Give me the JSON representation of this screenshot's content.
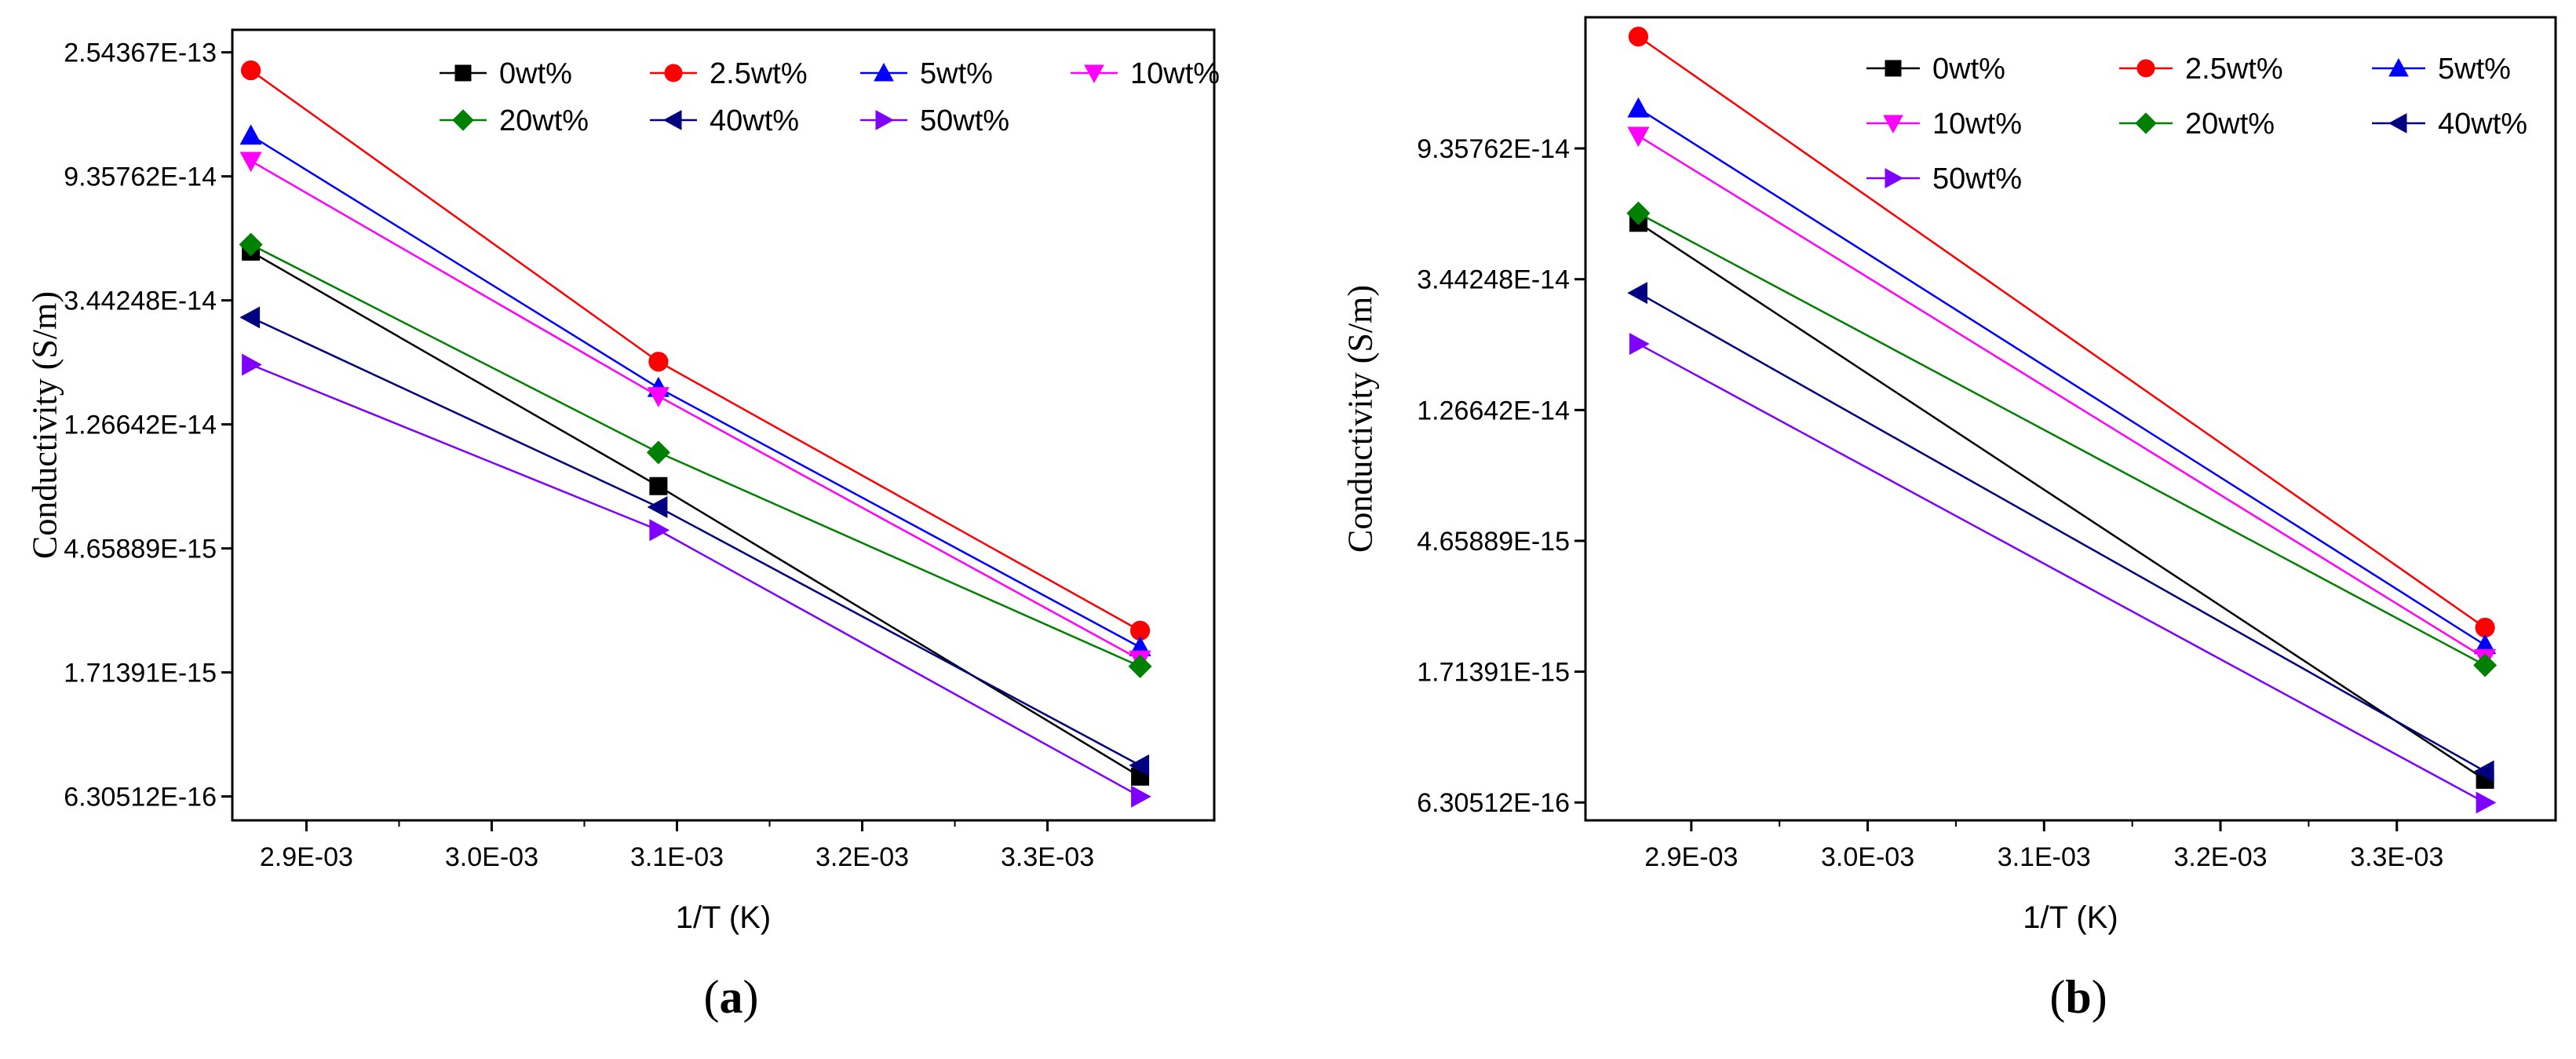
{
  "chart_data": [
    {
      "type": "line",
      "panel_label": "a",
      "xlabel": "1/T (K)",
      "ylabel": "Conductivity (S/m)",
      "yscale": "log",
      "xlim": [
        0.00286,
        0.00339
      ],
      "ylim": [
        5.2e-16,
        3.05e-13
      ],
      "x_ticks": [
        0.0029,
        0.003,
        0.0031,
        0.0032,
        0.0033
      ],
      "x_tick_labels": [
        "2.9E-03",
        "3.0E-03",
        "3.1E-03",
        "3.2E-03",
        "3.3E-03"
      ],
      "y_ticks": [
        6.30512e-16,
        1.71391e-15,
        4.65889e-15,
        1.26642e-14,
        3.44248e-14,
        9.35762e-14,
        2.54367e-13
      ],
      "y_tick_labels": [
        "6.30512E-16",
        "1.71391E-15",
        "4.65889E-15",
        "1.26642E-14",
        "3.44248E-14",
        "9.35762E-14",
        "2.54367E-13"
      ],
      "x": [
        0.00287,
        0.00309,
        0.00335
      ],
      "legend": {
        "columns": 4,
        "placement": "top-right"
      },
      "series": [
        {
          "name": "0wt%",
          "color": "#000000",
          "marker": "square",
          "values": [
            5.1e-14,
            7.7e-15,
            7.4e-16
          ]
        },
        {
          "name": "2.5wt%",
          "color": "#ff0000",
          "marker": "circle",
          "values": [
            2.2e-13,
            2.1e-14,
            2.4e-15
          ]
        },
        {
          "name": "5wt%",
          "color": "#0000ff",
          "marker": "triangle-up",
          "values": [
            1.3e-13,
            1.7e-14,
            2.1e-15
          ]
        },
        {
          "name": "10wt%",
          "color": "#ff00ff",
          "marker": "triangle-down",
          "values": [
            1.06e-13,
            1.59e-14,
            1.9e-15
          ]
        },
        {
          "name": "20wt%",
          "color": "#008000",
          "marker": "diamond",
          "values": [
            5.4e-14,
            1.01e-14,
            1.8e-15
          ]
        },
        {
          "name": "40wt%",
          "color": "#000080",
          "marker": "triangle-left",
          "values": [
            3e-14,
            6.5e-15,
            8.1e-16
          ]
        },
        {
          "name": "50wt%",
          "color": "#8000ff",
          "marker": "triangle-right",
          "values": [
            2.05e-14,
            5.4e-15,
            6.3e-16
          ]
        }
      ]
    },
    {
      "type": "line",
      "panel_label": "b",
      "xlabel": "1/T (K)",
      "ylabel": "Conductivity (S/m)",
      "yscale": "log",
      "xlim": [
        0.00284,
        0.00339
      ],
      "ylim": [
        5.5e-16,
        2.55e-13
      ],
      "x_ticks": [
        0.0029,
        0.003,
        0.0031,
        0.0032,
        0.0033
      ],
      "x_tick_labels": [
        "2.9E-03",
        "3.0E-03",
        "3.1E-03",
        "3.2E-03",
        "3.3E-03"
      ],
      "y_ticks": [
        6.30512e-16,
        1.71391e-15,
        4.65889e-15,
        1.26642e-14,
        3.44248e-14,
        9.35762e-14
      ],
      "y_tick_labels": [
        "6.30512E-16",
        "1.71391E-15",
        "4.65889E-15",
        "1.26642E-14",
        "3.44248E-14",
        "9.35762E-14"
      ],
      "x": [
        0.00287,
        0.00335
      ],
      "legend": {
        "columns": 3,
        "placement": "top-right"
      },
      "series": [
        {
          "name": "0wt%",
          "color": "#000000",
          "marker": "square",
          "values": [
            5.3e-14,
            7.5e-16
          ]
        },
        {
          "name": "2.5wt%",
          "color": "#ff0000",
          "marker": "circle",
          "values": [
            2.2e-13,
            2.4e-15
          ]
        },
        {
          "name": "5wt%",
          "color": "#0000ff",
          "marker": "triangle-up",
          "values": [
            1.27e-13,
            2.1e-15
          ]
        },
        {
          "name": "10wt%",
          "color": "#ff00ff",
          "marker": "triangle-down",
          "values": [
            1.03e-13,
            1.9e-15
          ]
        },
        {
          "name": "20wt%",
          "color": "#008000",
          "marker": "diamond",
          "values": [
            5.7e-14,
            1.8e-15
          ]
        },
        {
          "name": "40wt%",
          "color": "#000080",
          "marker": "triangle-left",
          "values": [
            3.1e-14,
            8e-16
          ]
        },
        {
          "name": "50wt%",
          "color": "#8000ff",
          "marker": "triangle-right",
          "values": [
            2.1e-14,
            6.3e-16
          ]
        }
      ]
    }
  ]
}
